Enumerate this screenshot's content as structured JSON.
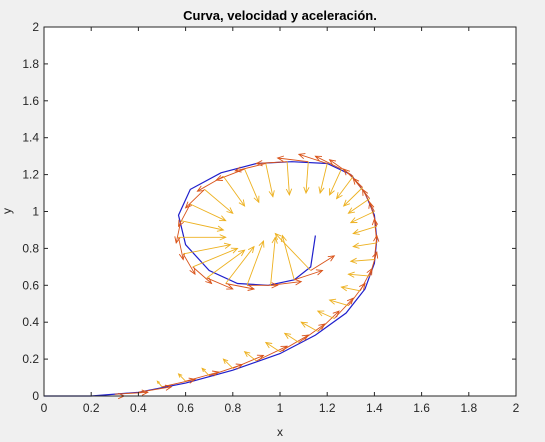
{
  "chart_data": {
    "type": "line",
    "title": "Curva, velocidad y aceleración.",
    "xlabel": "x",
    "ylabel": "y",
    "xlim": [
      0,
      2
    ],
    "ylim": [
      0,
      2
    ],
    "x_ticks": [
      "0",
      "0.2",
      "0.4",
      "0.6",
      "0.8",
      "1",
      "1.2",
      "1.4",
      "1.6",
      "1.8",
      "2"
    ],
    "y_ticks": [
      "0",
      "0.2",
      "0.4",
      "0.6",
      "0.8",
      "1",
      "1.2",
      "1.4",
      "1.6",
      "1.8",
      "2"
    ],
    "grid": false,
    "colors": {
      "curve": "#1f1fcc",
      "velocity": "#d95319",
      "acceleration": "#edb120",
      "axes_bg": "#ffffff",
      "figure_bg": "#f0f0f0",
      "axis": "#262626"
    },
    "curve": {
      "x": [
        0,
        0.2,
        0.4,
        0.6,
        0.8,
        1.0,
        1.15,
        1.28,
        1.36,
        1.4,
        1.41,
        1.4,
        1.36,
        1.3,
        1.2,
        1.05,
        0.9,
        0.75,
        0.62,
        0.57,
        0.6,
        0.7,
        0.82,
        0.95,
        1.06,
        1.13,
        1.15
      ],
      "y": [
        0,
        0,
        0.02,
        0.07,
        0.14,
        0.23,
        0.33,
        0.45,
        0.58,
        0.72,
        0.85,
        0.98,
        1.1,
        1.2,
        1.26,
        1.27,
        1.26,
        1.21,
        1.12,
        0.98,
        0.82,
        0.68,
        0.61,
        0.6,
        0.63,
        0.7,
        0.87
      ]
    },
    "velocity_vectors": {
      "x": [
        0.2,
        0.3,
        0.4,
        0.5,
        0.6,
        0.7,
        0.8,
        0.9,
        1.0,
        1.08,
        1.16,
        1.23,
        1.29,
        1.34,
        1.38,
        1.4,
        1.41,
        1.41,
        1.4,
        1.38,
        1.35,
        1.31,
        1.26,
        1.2,
        1.12,
        1.03,
        0.94,
        0.85,
        0.76,
        0.68,
        0.62,
        0.58,
        0.57,
        0.59,
        0.63,
        0.69,
        0.77,
        0.86,
        0.96,
        1.06,
        1.13
      ],
      "y": [
        0.0,
        0.01,
        0.02,
        0.05,
        0.08,
        0.11,
        0.15,
        0.19,
        0.24,
        0.29,
        0.35,
        0.42,
        0.49,
        0.57,
        0.65,
        0.74,
        0.83,
        0.92,
        1.0,
        1.07,
        1.13,
        1.19,
        1.23,
        1.26,
        1.27,
        1.27,
        1.26,
        1.23,
        1.19,
        1.12,
        1.04,
        0.95,
        0.86,
        0.77,
        0.7,
        0.64,
        0.61,
        0.6,
        0.6,
        0.63,
        0.68
      ],
      "u": [
        0.14,
        0.14,
        0.14,
        0.14,
        0.14,
        0.14,
        0.13,
        0.13,
        0.12,
        0.11,
        0.09,
        0.08,
        0.07,
        0.05,
        0.03,
        0.01,
        -0.01,
        -0.03,
        -0.05,
        -0.07,
        -0.08,
        -0.1,
        -0.11,
        -0.12,
        -0.13,
        -0.13,
        -0.13,
        -0.12,
        -0.11,
        -0.08,
        -0.05,
        -0.02,
        0.02,
        0.05,
        0.08,
        0.11,
        0.12,
        0.13,
        0.13,
        0.12,
        0.1
      ],
      "v": [
        0.0,
        0.01,
        0.03,
        0.04,
        0.05,
        0.06,
        0.07,
        0.08,
        0.09,
        0.1,
        0.11,
        0.11,
        0.12,
        0.12,
        0.13,
        0.13,
        0.13,
        0.13,
        0.12,
        0.11,
        0.1,
        0.09,
        0.07,
        0.05,
        0.02,
        -0.01,
        -0.04,
        -0.06,
        -0.08,
        -0.1,
        -0.12,
        -0.12,
        -0.12,
        -0.11,
        -0.09,
        -0.06,
        -0.03,
        0.0,
        0.02,
        0.05,
        0.08
      ]
    },
    "acceleration_vectors": {
      "x": [
        0.5,
        0.6,
        0.7,
        0.8,
        0.9,
        1.0,
        1.08,
        1.16,
        1.23,
        1.29,
        1.34,
        1.38,
        1.4,
        1.41,
        1.41,
        1.4,
        1.38,
        1.35,
        1.31,
        1.26,
        1.2,
        1.12,
        1.03,
        0.94,
        0.85,
        0.76,
        0.68,
        0.62,
        0.58,
        0.57,
        0.59,
        0.63,
        0.69,
        0.77,
        0.86,
        0.96,
        1.06,
        1.13
      ],
      "y": [
        0.05,
        0.08,
        0.11,
        0.15,
        0.19,
        0.24,
        0.29,
        0.35,
        0.42,
        0.49,
        0.57,
        0.65,
        0.74,
        0.83,
        0.92,
        1.0,
        1.07,
        1.13,
        1.19,
        1.23,
        1.26,
        1.27,
        1.27,
        1.26,
        1.23,
        1.19,
        1.12,
        1.04,
        0.95,
        0.86,
        0.77,
        0.7,
        0.64,
        0.61,
        0.6,
        0.6,
        0.63,
        0.68
      ],
      "u": [
        -0.02,
        -0.03,
        -0.03,
        -0.04,
        -0.05,
        -0.06,
        -0.06,
        -0.07,
        -0.07,
        -0.08,
        -0.08,
        -0.09,
        -0.1,
        -0.1,
        -0.1,
        -0.1,
        -0.09,
        -0.08,
        -0.07,
        -0.05,
        -0.03,
        -0.01,
        0.01,
        0.03,
        0.06,
        0.09,
        0.12,
        0.15,
        0.18,
        0.2,
        0.2,
        0.19,
        0.16,
        0.12,
        0.07,
        0.02,
        -0.05,
        -0.15
      ],
      "v": [
        0.03,
        0.04,
        0.04,
        0.05,
        0.05,
        0.05,
        0.05,
        0.05,
        0.04,
        0.03,
        0.02,
        0.01,
        -0.01,
        -0.02,
        -0.04,
        -0.06,
        -0.08,
        -0.1,
        -0.12,
        -0.14,
        -0.16,
        -0.17,
        -0.18,
        -0.18,
        -0.18,
        -0.16,
        -0.13,
        -0.09,
        -0.05,
        0.0,
        0.05,
        0.1,
        0.15,
        0.2,
        0.24,
        0.26,
        0.24,
        0.2
      ]
    }
  }
}
